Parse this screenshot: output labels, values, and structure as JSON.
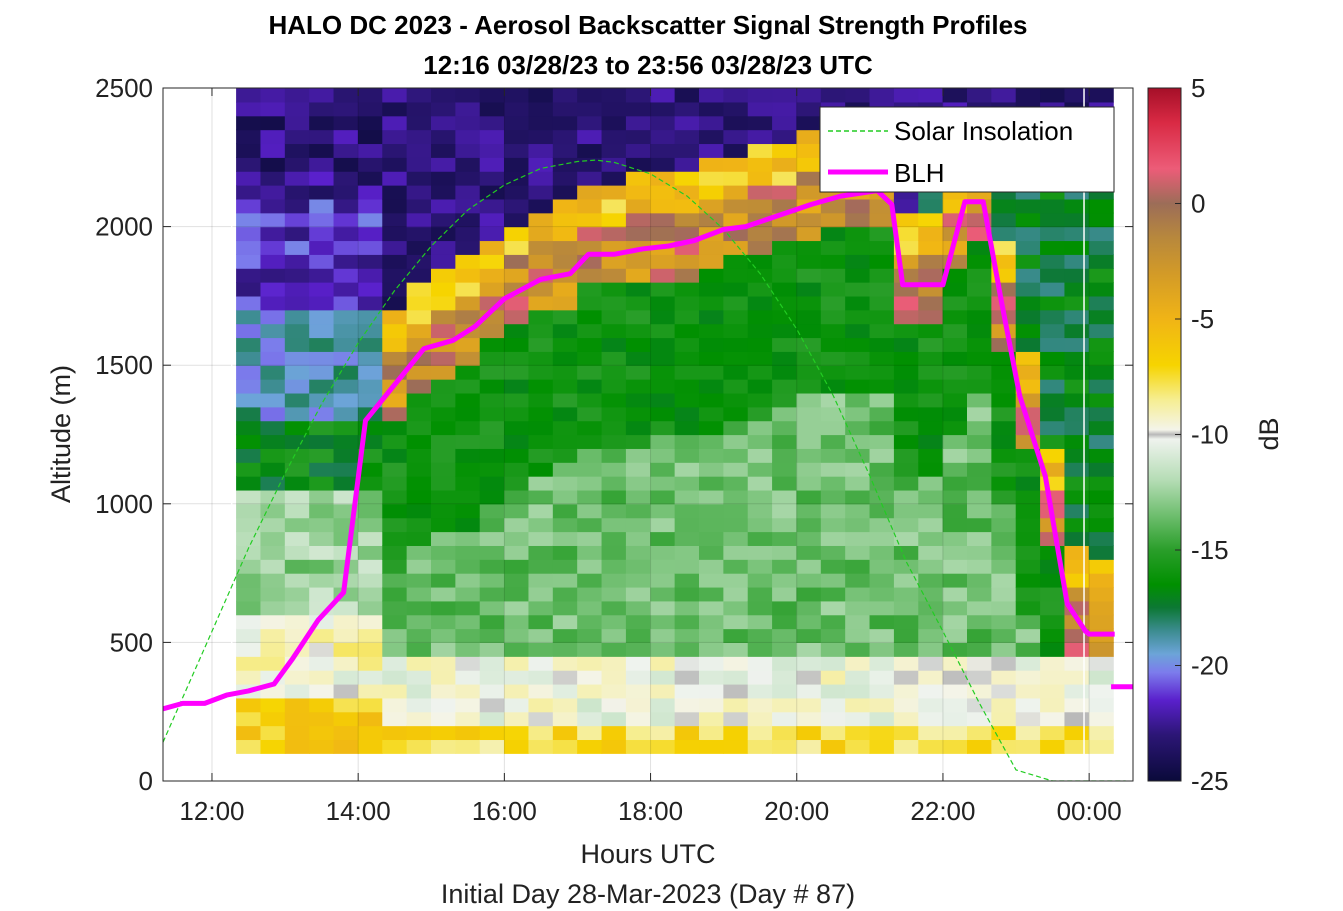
{
  "chart_data": {
    "type": "heatmap",
    "title": "HALO DC 2023 - Aerosol Backscatter Signal Strength Profiles",
    "subtitle": "12:16 03/28/23 to 23:56 03/28/23  UTC",
    "xlabel": "Hours UTC",
    "footnote": "Initial Day 28-Mar-2023 (Day # 87)",
    "ylabel": "Altitude (m)",
    "colorbar_label": "dB",
    "xlim": [
      11.33,
      24.6
    ],
    "ylim": [
      0,
      2500
    ],
    "x_ticks": [
      12,
      14,
      16,
      18,
      20,
      22,
      24
    ],
    "x_tick_labels": [
      "12:00",
      "14:00",
      "16:00",
      "18:00",
      "20:00",
      "22:00",
      "00:00"
    ],
    "y_ticks": [
      0,
      500,
      1000,
      1500,
      2000,
      2500
    ],
    "y_tick_labels": [
      "0",
      "500",
      "1000",
      "1500",
      "2000",
      "2500"
    ],
    "clim": [
      -25,
      5
    ],
    "c_ticks": [
      5,
      0,
      -5,
      -10,
      -15,
      -20,
      -25
    ],
    "c_tick_labels": [
      "5",
      "0",
      "-5",
      "-10",
      "-15",
      "-20",
      "-25"
    ],
    "grid": true,
    "legend_position": "top-right",
    "heatmap": {
      "x_start": 12.33,
      "x_step": 0.3333,
      "columns": 36,
      "y_start": 100,
      "y_step": 50,
      "rows": 48,
      "first_profile_time": 12.27,
      "last_profile_time": 23.93,
      "note": "gridded backscatter values estimated from image"
    },
    "series": [
      {
        "name": "Solar Insolation",
        "style": "dashed",
        "color": "#22cc22",
        "x": [
          11.33,
          12.0,
          12.5,
          13.0,
          13.5,
          14.0,
          14.5,
          15.0,
          15.5,
          16.0,
          16.5,
          17.0,
          17.25,
          17.5,
          18.0,
          18.5,
          19.0,
          19.5,
          20.0,
          20.5,
          21.0,
          21.5,
          22.0,
          22.5,
          23.0,
          23.5,
          23.65,
          24.0,
          24.5
        ],
        "y": [
          140,
          540,
          840,
          1110,
          1360,
          1580,
          1770,
          1930,
          2060,
          2150,
          2210,
          2235,
          2240,
          2232,
          2190,
          2110,
          1990,
          1830,
          1630,
          1390,
          1100,
          790,
          540,
          280,
          40,
          0,
          0,
          0,
          0
        ]
      },
      {
        "name": "BLH",
        "style": "solid",
        "color": "#ff00ff",
        "x": [
          11.33,
          11.6,
          11.9,
          12.2,
          12.5,
          12.85,
          13.1,
          13.45,
          13.8,
          14.1,
          14.5,
          14.9,
          15.3,
          15.6,
          16.0,
          16.5,
          16.9,
          17.15,
          17.5,
          17.9,
          18.25,
          18.6,
          19.0,
          19.3,
          19.75,
          20.2,
          20.6,
          21.1,
          21.3,
          21.45,
          21.8,
          22.0,
          22.3,
          22.55,
          22.8,
          23.05,
          23.4,
          23.7,
          23.95,
          24.0,
          24.35
        ],
        "y": [
          260,
          280,
          280,
          310,
          325,
          350,
          440,
          580,
          680,
          1300,
          1430,
          1560,
          1590,
          1640,
          1740,
          1810,
          1830,
          1900,
          1900,
          1920,
          1930,
          1950,
          1990,
          2000,
          2040,
          2080,
          2110,
          2130,
          2080,
          1790,
          1790,
          1790,
          2090,
          2090,
          1730,
          1390,
          1100,
          640,
          540,
          530,
          530
        ]
      }
    ],
    "extra_marks": [
      {
        "series": "BLH",
        "x": [
          24.3,
          24.6
        ],
        "y": [
          340,
          340
        ]
      }
    ],
    "colormap_stops": [
      {
        "v": 5,
        "c": "#a50f28"
      },
      {
        "v": 3.5,
        "c": "#d92a44"
      },
      {
        "v": 1.5,
        "c": "#ec5c78"
      },
      {
        "v": 0,
        "c": "#9c6d58"
      },
      {
        "v": -1.5,
        "c": "#b8883c"
      },
      {
        "v": -3,
        "c": "#d29a28"
      },
      {
        "v": -5,
        "c": "#f0b416"
      },
      {
        "v": -7,
        "c": "#f6d400"
      },
      {
        "v": -8.5,
        "c": "#f6ee92"
      },
      {
        "v": -9.8,
        "c": "#f4f4ea"
      },
      {
        "v": -10,
        "c": "#b8b8b8"
      },
      {
        "v": -10.2,
        "c": "#eff3ee"
      },
      {
        "v": -12,
        "c": "#b4dcb4"
      },
      {
        "v": -13.5,
        "c": "#6ebe6e"
      },
      {
        "v": -15,
        "c": "#2a9e2a"
      },
      {
        "v": -16.5,
        "c": "#009000"
      },
      {
        "v": -17.5,
        "c": "#0c7834"
      },
      {
        "v": -18.5,
        "c": "#3c8c90"
      },
      {
        "v": -19.5,
        "c": "#6ca4d8"
      },
      {
        "v": -20.3,
        "c": "#7c7cec"
      },
      {
        "v": -21.5,
        "c": "#5a20cc"
      },
      {
        "v": -23,
        "c": "#2c1676"
      },
      {
        "v": -25,
        "c": "#0a0a3a"
      }
    ]
  }
}
